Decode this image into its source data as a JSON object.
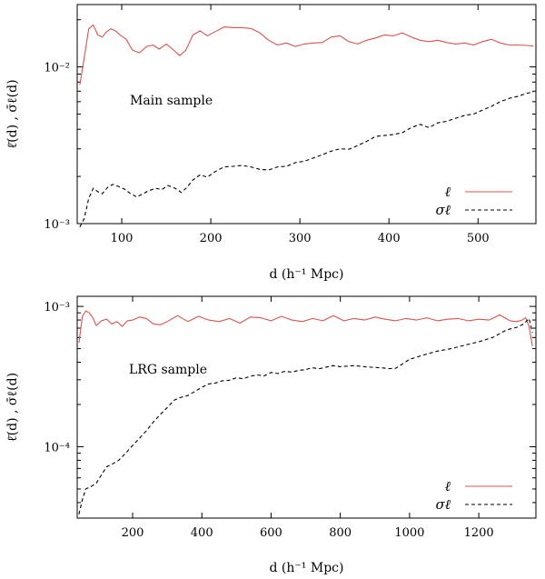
{
  "chart_data": [
    {
      "type": "line",
      "panel": "top",
      "annotation": "Main sample",
      "xlabel": "d (h⁻¹ Mpc)",
      "ylabel": "ℓ̄(d) , σ̄ℓ(d)",
      "yscale": "log",
      "xlim": [
        50,
        565
      ],
      "ylim": [
        0.001,
        0.025
      ],
      "x_ticks": [
        100,
        200,
        300,
        400,
        500
      ],
      "x_tick_labels": [
        "100",
        "200",
        "300",
        "400",
        "500"
      ],
      "y_ticks": [
        0.001,
        0.01
      ],
      "y_tick_labels": [
        "10⁻³",
        "10⁻²"
      ],
      "legend": {
        "placement": "bottom-right"
      },
      "series": [
        {
          "name": "ℓ",
          "color": "#d9534f",
          "style": "solid",
          "x": [
            53,
            58,
            63,
            68,
            73,
            78,
            83,
            88,
            93,
            98,
            105,
            112,
            120,
            128,
            135,
            142,
            150,
            157,
            165,
            172,
            180,
            188,
            196,
            205,
            215,
            225,
            235,
            245,
            255,
            265,
            275,
            285,
            295,
            305,
            315,
            325,
            335,
            345,
            355,
            365,
            375,
            385,
            395,
            405,
            415,
            425,
            435,
            445,
            455,
            465,
            475,
            485,
            495,
            505,
            515,
            525,
            535,
            545,
            555,
            562
          ],
          "values": [
            0.0077,
            0.0115,
            0.0175,
            0.0185,
            0.016,
            0.0155,
            0.0168,
            0.0175,
            0.017,
            0.016,
            0.015,
            0.0128,
            0.0123,
            0.0135,
            0.0138,
            0.013,
            0.014,
            0.013,
            0.0118,
            0.0128,
            0.016,
            0.017,
            0.0158,
            0.0168,
            0.018,
            0.0178,
            0.0178,
            0.0176,
            0.0165,
            0.0148,
            0.0138,
            0.0142,
            0.0135,
            0.014,
            0.0142,
            0.0143,
            0.0155,
            0.0158,
            0.0145,
            0.014,
            0.0148,
            0.0153,
            0.016,
            0.0158,
            0.0165,
            0.0155,
            0.0148,
            0.0145,
            0.0148,
            0.0143,
            0.014,
            0.0142,
            0.0138,
            0.0145,
            0.015,
            0.0142,
            0.0138,
            0.0138,
            0.0137,
            0.0136
          ]
        },
        {
          "name": "σℓ",
          "color": "#000000",
          "style": "dashed",
          "x": [
            53,
            58,
            63,
            68,
            73,
            78,
            84,
            90,
            97,
            104,
            110,
            117,
            124,
            130,
            138,
            145,
            152,
            160,
            167,
            173,
            180,
            188,
            196,
            205,
            215,
            225,
            235,
            245,
            255,
            265,
            275,
            285,
            295,
            305,
            315,
            325,
            335,
            345,
            355,
            365,
            375,
            385,
            395,
            405,
            415,
            425,
            435,
            445,
            455,
            465,
            475,
            485,
            495,
            505,
            515,
            525,
            535,
            545,
            555,
            562
          ],
          "values": [
            0.00095,
            0.00108,
            0.00145,
            0.00168,
            0.0016,
            0.00155,
            0.0017,
            0.00178,
            0.00172,
            0.00165,
            0.00155,
            0.00148,
            0.00155,
            0.00162,
            0.00168,
            0.00165,
            0.00175,
            0.00168,
            0.00158,
            0.0017,
            0.0019,
            0.00205,
            0.00198,
            0.00215,
            0.0023,
            0.00232,
            0.00235,
            0.0023,
            0.00222,
            0.0022,
            0.0023,
            0.00232,
            0.00245,
            0.0025,
            0.00262,
            0.00275,
            0.0029,
            0.003,
            0.00298,
            0.00315,
            0.00335,
            0.0036,
            0.00365,
            0.0037,
            0.0038,
            0.0041,
            0.0043,
            0.0041,
            0.0044,
            0.0045,
            0.0047,
            0.0049,
            0.005,
            0.0053,
            0.0056,
            0.006,
            0.0063,
            0.0065,
            0.0068,
            0.0069
          ]
        }
      ]
    },
    {
      "type": "line",
      "panel": "bottom",
      "annotation": "LRG sample",
      "xlabel": "d (h⁻¹ Mpc)",
      "ylabel": "ℓ̄(d) , σ̄ℓ(d)",
      "yscale": "log",
      "xlim": [
        40,
        1365
      ],
      "ylim": [
        3.1e-05,
        0.00118
      ],
      "x_ticks": [
        200,
        400,
        600,
        800,
        1000,
        1200
      ],
      "x_tick_labels": [
        "200",
        "400",
        "600",
        "800",
        "1000",
        "1200"
      ],
      "y_ticks": [
        0.0001,
        0.001
      ],
      "y_tick_labels": [
        "10⁻⁴",
        "10⁻³"
      ],
      "legend": {
        "placement": "bottom-right"
      },
      "series": [
        {
          "name": "ℓ",
          "color": "#d9534f",
          "style": "solid",
          "x": [
            45,
            55,
            65,
            75,
            85,
            95,
            110,
            125,
            140,
            155,
            170,
            185,
            200,
            220,
            240,
            260,
            280,
            300,
            330,
            360,
            390,
            420,
            450,
            480,
            510,
            540,
            570,
            600,
            630,
            660,
            690,
            720,
            750,
            780,
            810,
            840,
            870,
            900,
            930,
            960,
            990,
            1020,
            1050,
            1080,
            1110,
            1140,
            1170,
            1200,
            1230,
            1260,
            1290,
            1310,
            1325,
            1335,
            1345,
            1355
          ],
          "values": [
            0.00055,
            0.00085,
            0.00093,
            0.0009,
            0.00083,
            0.00073,
            0.00079,
            0.00081,
            0.00075,
            0.00078,
            0.00072,
            0.00079,
            0.0008,
            0.00084,
            0.00082,
            0.00075,
            0.00074,
            0.00078,
            0.00086,
            0.00078,
            0.00085,
            0.0008,
            0.00078,
            0.00082,
            0.00076,
            0.00084,
            0.00083,
            0.00079,
            0.00085,
            0.0008,
            0.00078,
            0.00082,
            0.00079,
            0.00086,
            0.00079,
            0.00082,
            0.0008,
            0.00084,
            0.00081,
            0.00079,
            0.00082,
            0.0008,
            0.00083,
            0.00079,
            0.00081,
            0.00082,
            0.00079,
            0.00081,
            0.0008,
            0.00087,
            0.00079,
            0.00078,
            0.0008,
            0.00083,
            0.00072,
            0.00052
          ]
        },
        {
          "name": "σℓ",
          "color": "#000000",
          "style": "dashed",
          "x": [
            45,
            55,
            65,
            80,
            95,
            110,
            125,
            140,
            160,
            180,
            200,
            220,
            240,
            260,
            280,
            300,
            320,
            340,
            360,
            380,
            400,
            420,
            440,
            460,
            480,
            500,
            520,
            540,
            560,
            580,
            600,
            620,
            640,
            660,
            680,
            700,
            720,
            740,
            760,
            780,
            800,
            840,
            880,
            920,
            940,
            960,
            980,
            1000,
            1040,
            1080,
            1120,
            1160,
            1200,
            1240,
            1280,
            1310,
            1330,
            1345,
            1355
          ],
          "values": [
            3.3e-05,
            4.2e-05,
            5e-05,
            5.2e-05,
            5.5e-05,
            6.3e-05,
            7.2e-05,
            7.5e-05,
            8e-05,
            9e-05,
            0.000102,
            0.000115,
            0.00013,
            0.00015,
            0.00017,
            0.00019,
            0.000215,
            0.000225,
            0.000232,
            0.000248,
            0.000265,
            0.00028,
            0.000285,
            0.000295,
            0.000298,
            0.00031,
            0.000305,
            0.000318,
            0.000325,
            0.00032,
            0.000338,
            0.000332,
            0.000345,
            0.00034,
            0.00035,
            0.000355,
            0.000365,
            0.00036,
            0.00037,
            0.000378,
            0.000372,
            0.000378,
            0.00037,
            0.000365,
            0.00036,
            0.000362,
            0.00039,
            0.00042,
            0.00045,
            0.00048,
            0.0005,
            0.00053,
            0.00056,
            0.0006,
            0.00068,
            0.00071,
            0.00075,
            0.00082,
            0.00065
          ]
        }
      ]
    }
  ]
}
